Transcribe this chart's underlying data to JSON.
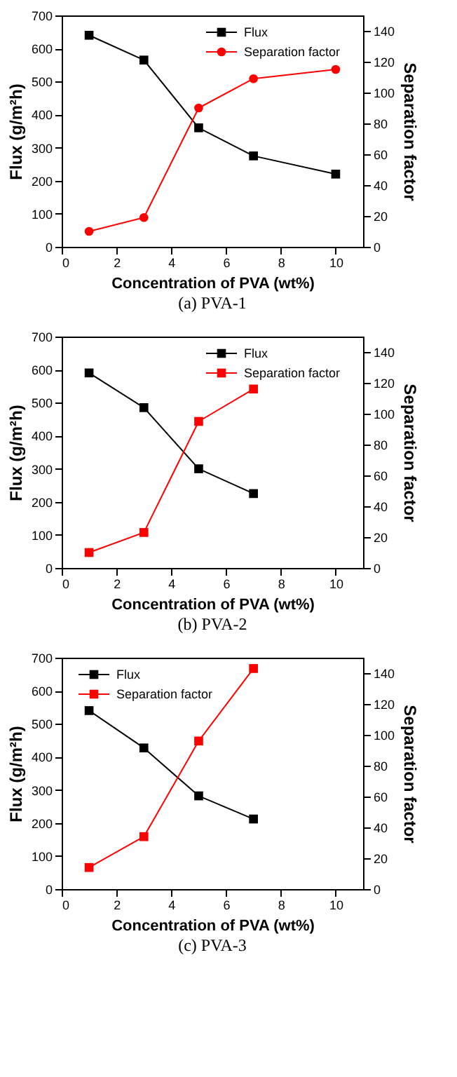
{
  "chart_data": [
    {
      "type": "line",
      "title": "(a)  PVA-1",
      "xlabel": "Concentration of PVA (wt%)",
      "ylabel": "Flux (g/m²h)",
      "y2label": "Separation factor",
      "x": [
        1,
        3,
        5,
        7,
        10
      ],
      "xlim": [
        0,
        11
      ],
      "xticks": [
        0,
        2,
        4,
        6,
        8,
        10
      ],
      "ylim": [
        0,
        700
      ],
      "yticks": [
        0,
        100,
        200,
        300,
        400,
        500,
        600,
        700
      ],
      "y2lim": [
        0,
        150
      ],
      "y2ticks": [
        0,
        20,
        40,
        60,
        80,
        100,
        120,
        140
      ],
      "grid": false,
      "legend": "top right",
      "line_style": "solid",
      "series": [
        {
          "name": "Flux",
          "color": "#000000",
          "marker": "square",
          "values": [
            640,
            565,
            360,
            275,
            220
          ]
        },
        {
          "name": "Separation factor",
          "color": "#ff0000",
          "marker": "circle",
          "axis": "y2",
          "values": [
            10,
            19,
            90,
            109,
            115
          ]
        }
      ]
    },
    {
      "type": "line",
      "title": "(b)  PVA-2",
      "xlabel": "Concentration of PVA (wt%)",
      "ylabel": "Flux (g/m²h)",
      "y2label": "Separation factor",
      "x": [
        1,
        3,
        5,
        7
      ],
      "xlim": [
        0,
        11
      ],
      "xticks": [
        0,
        2,
        4,
        6,
        8,
        10
      ],
      "ylim": [
        0,
        700
      ],
      "yticks": [
        0,
        100,
        200,
        300,
        400,
        500,
        600,
        700
      ],
      "y2lim": [
        0,
        150
      ],
      "y2ticks": [
        0,
        20,
        40,
        60,
        80,
        100,
        120,
        140
      ],
      "grid": false,
      "legend": "top right",
      "line_style": "solid",
      "series": [
        {
          "name": "Flux",
          "color": "#000000",
          "marker": "square",
          "values": [
            590,
            485,
            300,
            225
          ]
        },
        {
          "name": "Separation factor",
          "color": "#ff0000",
          "marker": "square",
          "axis": "y2",
          "values": [
            10,
            23,
            95,
            116
          ]
        }
      ]
    },
    {
      "type": "line",
      "title": "(c)  PVA-3",
      "xlabel": "Concentration of PVA (wt%)",
      "ylabel": "Flux (g/m²h)",
      "y2label": "Separation factor",
      "x": [
        1,
        3,
        5,
        7
      ],
      "xlim": [
        0,
        11
      ],
      "xticks": [
        0,
        2,
        4,
        6,
        8,
        10
      ],
      "ylim": [
        0,
        700
      ],
      "yticks": [
        0,
        100,
        200,
        300,
        400,
        500,
        600,
        700
      ],
      "y2lim": [
        0,
        150
      ],
      "y2ticks": [
        0,
        20,
        40,
        60,
        80,
        100,
        120,
        140
      ],
      "grid": false,
      "legend": "top left",
      "line_style": "solid",
      "series": [
        {
          "name": "Flux",
          "color": "#000000",
          "marker": "square",
          "values": [
            540,
            427,
            282,
            212
          ]
        },
        {
          "name": "Separation factor",
          "color": "#ff0000",
          "marker": "square",
          "axis": "y2",
          "values": [
            14,
            34,
            96,
            143
          ]
        }
      ]
    }
  ]
}
